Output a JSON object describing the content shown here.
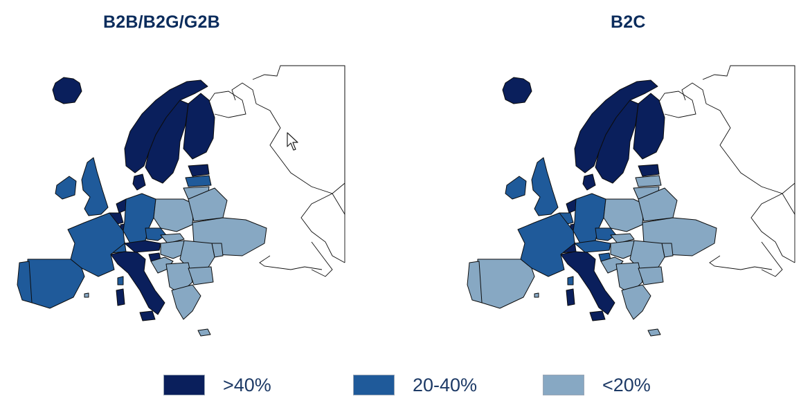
{
  "maps": [
    {
      "title": "B2B/B2G/G2B",
      "regions": {
        "iceland": "high",
        "norway": "high",
        "sweden": "high",
        "finland": "high",
        "estonia": "high",
        "denmark": "high",
        "netherlands": "high",
        "belgium": "high",
        "luxembourg": "high",
        "austria": "high",
        "italy": "high",
        "slovenia": "high",
        "sardinia": "high",
        "uk": "mid",
        "ireland": "mid",
        "germany": "mid",
        "france": "mid",
        "spain": "mid",
        "portugal": "mid",
        "corsica": "mid",
        "czechia": "mid",
        "switzerland": "mid",
        "latvia": "mid",
        "lithuania": "low",
        "poland": "low",
        "slovakia": "low",
        "hungary": "low",
        "romania": "low",
        "bulgaria": "low",
        "croatia": "low",
        "balkans": "low",
        "greece": "low",
        "belarus": "low",
        "ukraine": "low",
        "moldova": "low",
        "cyprus": "low",
        "malta": "low"
      }
    },
    {
      "title": "B2C",
      "regions": {
        "iceland": "high",
        "norway": "high",
        "sweden": "high",
        "finland": "high",
        "estonia": "high",
        "denmark": "high",
        "netherlands": "high",
        "italy": "high",
        "sardinia": "high",
        "switzerland": "high",
        "luxembourg": "high",
        "uk": "mid",
        "ireland": "mid",
        "germany": "mid",
        "france": "mid",
        "belgium": "mid",
        "austria": "mid",
        "corsica": "mid",
        "czechia": "mid",
        "slovenia": "mid",
        "spain": "low",
        "portugal": "low",
        "latvia": "low",
        "lithuania": "low",
        "poland": "low",
        "slovakia": "low",
        "hungary": "low",
        "romania": "low",
        "bulgaria": "low",
        "croatia": "low",
        "balkans": "low",
        "greece": "low",
        "belarus": "low",
        "ukraine": "low",
        "moldova": "low",
        "cyprus": "low",
        "malta": "low"
      }
    }
  ],
  "legend": [
    {
      "label": ">40%",
      "key": "high",
      "color": "#0a1f5c"
    },
    {
      "label": "20-40%",
      "key": "mid",
      "color": "#1f5a9a"
    },
    {
      "label": "<20%",
      "key": "low",
      "color": "#87a8c3"
    }
  ]
}
